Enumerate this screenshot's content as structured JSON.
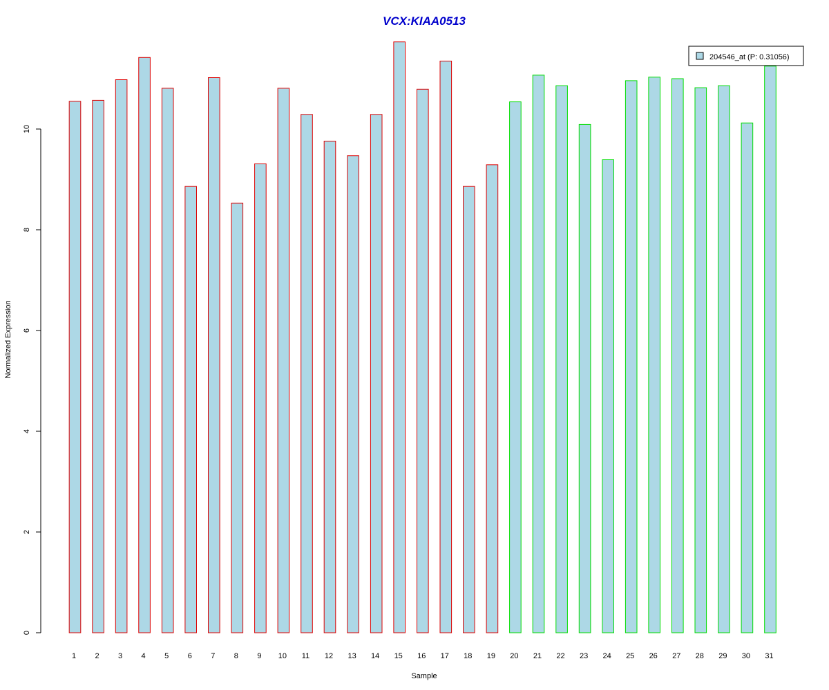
{
  "chart_data": {
    "type": "bar",
    "title": "VCX:KIAA0513",
    "xlabel": "Sample",
    "ylabel": "Normalized Expression",
    "ylim": [
      0,
      12
    ],
    "yticks": [
      0,
      2,
      4,
      6,
      8,
      10
    ],
    "categories": [
      "1",
      "2",
      "3",
      "4",
      "5",
      "6",
      "7",
      "8",
      "9",
      "10",
      "11",
      "12",
      "13",
      "14",
      "15",
      "16",
      "17",
      "18",
      "19",
      "20",
      "21",
      "22",
      "23",
      "24",
      "25",
      "26",
      "27",
      "28",
      "29",
      "30",
      "31"
    ],
    "series": [
      {
        "name": "204546_at (P: 0.31056)",
        "values": [
          10.55,
          10.57,
          10.98,
          11.42,
          10.81,
          8.86,
          11.02,
          8.53,
          9.31,
          10.81,
          10.29,
          9.76,
          9.47,
          10.29,
          11.73,
          10.79,
          11.35,
          8.86,
          9.29,
          10.54,
          11.07,
          10.86,
          10.09,
          9.39,
          10.96,
          11.03,
          11.0,
          10.82,
          10.86,
          10.12,
          11.25
        ]
      }
    ],
    "group_border_colors": [
      "#dd0000",
      "#dd0000",
      "#dd0000",
      "#dd0000",
      "#dd0000",
      "#dd0000",
      "#dd0000",
      "#dd0000",
      "#dd0000",
      "#dd0000",
      "#dd0000",
      "#dd0000",
      "#dd0000",
      "#dd0000",
      "#dd0000",
      "#dd0000",
      "#dd0000",
      "#dd0000",
      "#dd0000",
      "#00dd00",
      "#00dd00",
      "#00dd00",
      "#00dd00",
      "#00dd00",
      "#00dd00",
      "#00dd00",
      "#00dd00",
      "#00dd00",
      "#00dd00",
      "#00dd00",
      "#00dd00"
    ],
    "bar_fill": "#add8e6",
    "title_color": "#0000cc",
    "legend_position": "top-right",
    "grid": false
  }
}
